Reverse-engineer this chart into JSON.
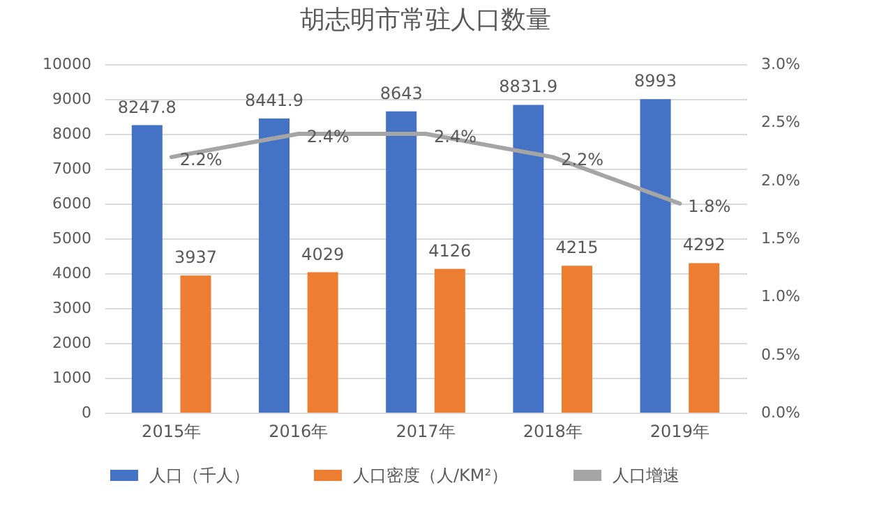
{
  "chart_data": {
    "type": "bar",
    "title": "胡志明市常驻人口数量",
    "categories": [
      "2015年",
      "2016年",
      "2017年",
      "2018年",
      "2019年"
    ],
    "series": [
      {
        "name": "人口（千人）",
        "color": "#4472c4",
        "values": [
          8247.8,
          8441.9,
          8643,
          8831.9,
          8993
        ]
      },
      {
        "name": "人口密度（人/KM²）",
        "color": "#ed7d31",
        "values": [
          3937,
          4029,
          4126,
          4215,
          4292
        ]
      },
      {
        "name": "人口增速",
        "type": "line",
        "axis": "y2",
        "color": "#a5a5a5",
        "values": [
          2.2,
          2.4,
          2.4,
          2.2,
          1.8
        ],
        "value_labels": [
          "2.2%",
          "2.4%",
          "2.4%",
          "2.2%",
          "1.8%"
        ]
      }
    ],
    "data_labels": true,
    "ylim": [
      0,
      10000
    ],
    "yticks": [
      0,
      1000,
      2000,
      3000,
      4000,
      5000,
      6000,
      7000,
      8000,
      9000,
      10000
    ],
    "y2lim": [
      0,
      3
    ],
    "y2ticks": [
      {
        "value": 0,
        "label": "0.0%"
      },
      {
        "value": 0.5,
        "label": "0.5%"
      },
      {
        "value": 1,
        "label": "1.0%"
      },
      {
        "value": 1.5,
        "label": "1.5%"
      },
      {
        "value": 2,
        "label": "2.0%"
      },
      {
        "value": 2.5,
        "label": "2.5%"
      },
      {
        "value": 3,
        "label": "3.0%"
      }
    ],
    "grid": "y",
    "legend": "bottom",
    "marker": "none",
    "line_style": "solid"
  }
}
